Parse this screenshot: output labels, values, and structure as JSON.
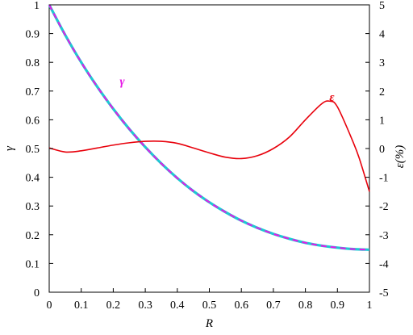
{
  "chart_data": {
    "type": "line",
    "xlabel": "R",
    "ylabel_left": "γ",
    "ylabel_right": "ε(%)",
    "xlim": [
      0,
      1
    ],
    "ylim_left": [
      0,
      1
    ],
    "ylim_right": [
      -5,
      5
    ],
    "x_ticks": [
      "0",
      "0.1",
      "0.2",
      "0.3",
      "0.4",
      "0.5",
      "0.6",
      "0.7",
      "0.8",
      "0.9",
      "1"
    ],
    "y_left_ticks": [
      "0",
      "0.1",
      "0.2",
      "0.3",
      "0.4",
      "0.5",
      "0.6",
      "0.7",
      "0.8",
      "0.9",
      "1"
    ],
    "y_right_ticks": [
      "-5",
      "-4",
      "-3",
      "-2",
      "-1",
      "0",
      "1",
      "2",
      "3",
      "4",
      "5"
    ],
    "grid": false,
    "annotations": [
      {
        "text": "γ",
        "color": "#e619e6"
      },
      {
        "text": "ε",
        "color": "#e8000b"
      }
    ],
    "series": [
      {
        "name": "γ",
        "axis": "left",
        "style": "cyan line with magenta dashed overlay",
        "colors": [
          "#1ec8d2",
          "#e619e6"
        ],
        "x": [
          0,
          0.05,
          0.1,
          0.15,
          0.2,
          0.25,
          0.3,
          0.35,
          0.4,
          0.45,
          0.5,
          0.55,
          0.6,
          0.65,
          0.7,
          0.75,
          0.8,
          0.85,
          0.9,
          0.95,
          1.0
        ],
        "y": [
          1.0,
          0.895,
          0.8,
          0.715,
          0.638,
          0.568,
          0.505,
          0.448,
          0.397,
          0.352,
          0.313,
          0.279,
          0.249,
          0.224,
          0.203,
          0.186,
          0.172,
          0.162,
          0.155,
          0.15,
          0.148
        ]
      },
      {
        "name": "ε",
        "axis": "right",
        "colors": [
          "#e8000b"
        ],
        "x": [
          0,
          0.05,
          0.1,
          0.15,
          0.2,
          0.25,
          0.3,
          0.35,
          0.4,
          0.45,
          0.5,
          0.55,
          0.6,
          0.65,
          0.7,
          0.75,
          0.8,
          0.85,
          0.875,
          0.9,
          0.95,
          0.97,
          1.0
        ],
        "y": [
          0.02,
          -0.12,
          -0.08,
          0.02,
          0.12,
          0.2,
          0.25,
          0.25,
          0.18,
          0.02,
          -0.15,
          -0.3,
          -0.35,
          -0.25,
          0.0,
          0.4,
          1.0,
          1.55,
          1.65,
          1.45,
          0.2,
          -0.4,
          -1.5
        ]
      }
    ]
  }
}
